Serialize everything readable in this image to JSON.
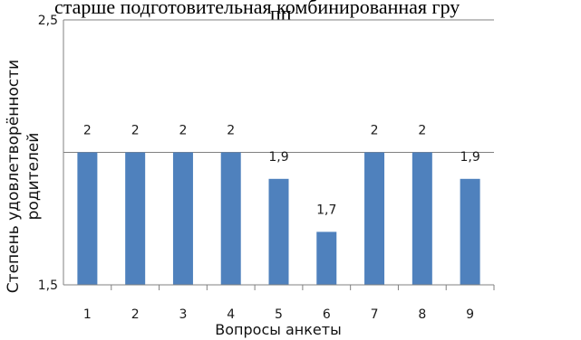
{
  "header_text": {
    "line1": "старше подготовительная комбинированная гру",
    "line2": "пп"
  },
  "chart_data": {
    "type": "bar",
    "title": "",
    "xlabel": "Вопросы анкеты",
    "ylabel_lines": [
      "Степень удовлетворённости",
      "родителей"
    ],
    "categories": [
      "1",
      "2",
      "3",
      "4",
      "5",
      "6",
      "7",
      "8",
      "9"
    ],
    "values": [
      2,
      2,
      2,
      2,
      1.9,
      1.7,
      2,
      2,
      1.9
    ],
    "value_labels": [
      "2",
      "2",
      "2",
      "2",
      "1,9",
      "1,7",
      "2",
      "2",
      "1,9"
    ],
    "ylim": [
      1.5,
      2.5
    ],
    "y_ticks": [
      1.5,
      2,
      2.5
    ],
    "y_tick_labels": [
      "1,5",
      "",
      "2,5"
    ],
    "grid": true,
    "legend": "none",
    "bar_color": "#4f81bd",
    "grid_color": "#808080"
  }
}
